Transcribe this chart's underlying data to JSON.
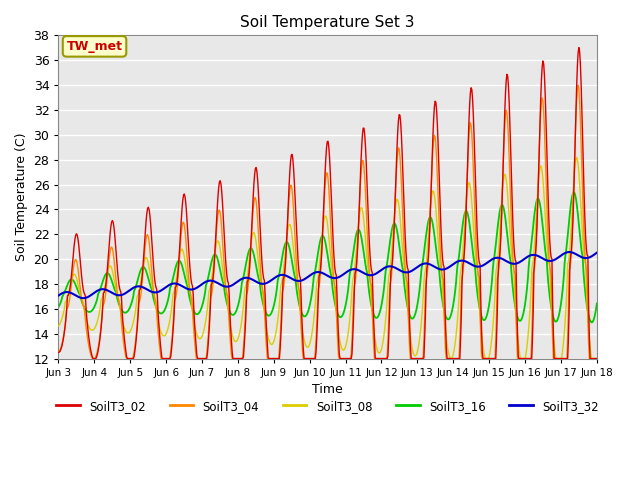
{
  "title": "Soil Temperature Set 3",
  "xlabel": "Time",
  "ylabel": "Soil Temperature (C)",
  "ylim": [
    12,
    38
  ],
  "annotation": "TW_met",
  "xtick_labels": [
    "Jun 3",
    "Jun 4",
    "Jun 5",
    "Jun 6",
    "Jun 7",
    "Jun 8",
    "Jun 9",
    "Jun 10",
    "Jun 11",
    "Jun 12",
    "Jun 13",
    "Jun 14",
    "Jun 15",
    "Jun 16",
    "Jun 17",
    "Jun 18"
  ],
  "colors": {
    "SoilT3_02": "#dd0000",
    "SoilT3_04": "#ff8800",
    "SoilT3_08": "#ddcc00",
    "SoilT3_16": "#00cc00",
    "SoilT3_32": "#0000cc"
  },
  "background_color": "#e8e8e8",
  "grid_color": "#ffffff",
  "annotation_bg": "#ffffcc",
  "annotation_fg": "#cc0000",
  "n_days": 15,
  "pts_per_day": 48
}
